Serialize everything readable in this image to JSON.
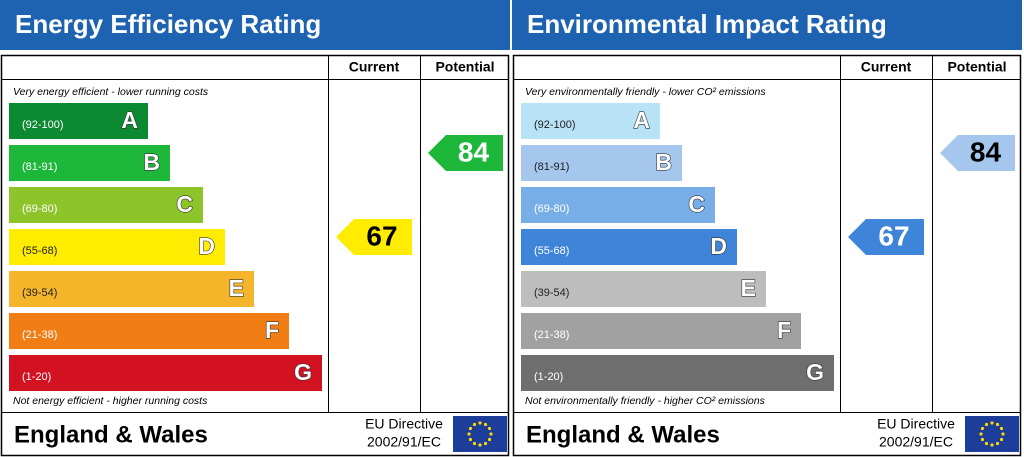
{
  "panels": [
    {
      "title": "Energy Efficiency Rating",
      "headers": [
        "Current",
        "Potential"
      ],
      "top_note": "Very energy efficient - lower running costs",
      "bottom_note": "Not energy efficient - higher running costs",
      "bands": [
        {
          "range": "(92-100)",
          "letter": "A",
          "color": "#0c8a32"
        },
        {
          "range": "(81-91)",
          "letter": "B",
          "color": "#1db83a"
        },
        {
          "range": "(69-80)",
          "letter": "C",
          "color": "#8dc42a"
        },
        {
          "range": "(55-68)",
          "letter": "D",
          "color": "#ffec00"
        },
        {
          "range": "(39-54)",
          "letter": "E",
          "color": "#f4b52a"
        },
        {
          "range": "(21-38)",
          "letter": "F",
          "color": "#f07e14"
        },
        {
          "range": "(1-20)",
          "letter": "G",
          "color": "#d21121"
        }
      ],
      "current": 67,
      "potential": 84,
      "footer": "England & Wales",
      "directive": [
        "EU Directive",
        "2002/91/EC"
      ]
    },
    {
      "title": "Environmental Impact Rating",
      "headers": [
        "Current",
        "Potential"
      ],
      "top_note": "Very environmentally friendly - lower CO² emissions",
      "bottom_note": "Not environmentally friendly - higher CO² emissions",
      "bands": [
        {
          "range": "(92-100)",
          "letter": "A",
          "color": "#b8e2f6"
        },
        {
          "range": "(81-91)",
          "letter": "B",
          "color": "#a5c7ee"
        },
        {
          "range": "(69-80)",
          "letter": "C",
          "color": "#78aee8"
        },
        {
          "range": "(55-68)",
          "letter": "D",
          "color": "#3e84d8"
        },
        {
          "range": "(39-54)",
          "letter": "E",
          "color": "#bdbdbd"
        },
        {
          "range": "(21-38)",
          "letter": "F",
          "color": "#a1a1a1"
        },
        {
          "range": "(1-20)",
          "letter": "G",
          "color": "#6e6e6e"
        }
      ],
      "current": 67,
      "potential": 84,
      "footer": "England & Wales",
      "directive": [
        "EU Directive",
        "2002/91/EC"
      ]
    }
  ]
}
